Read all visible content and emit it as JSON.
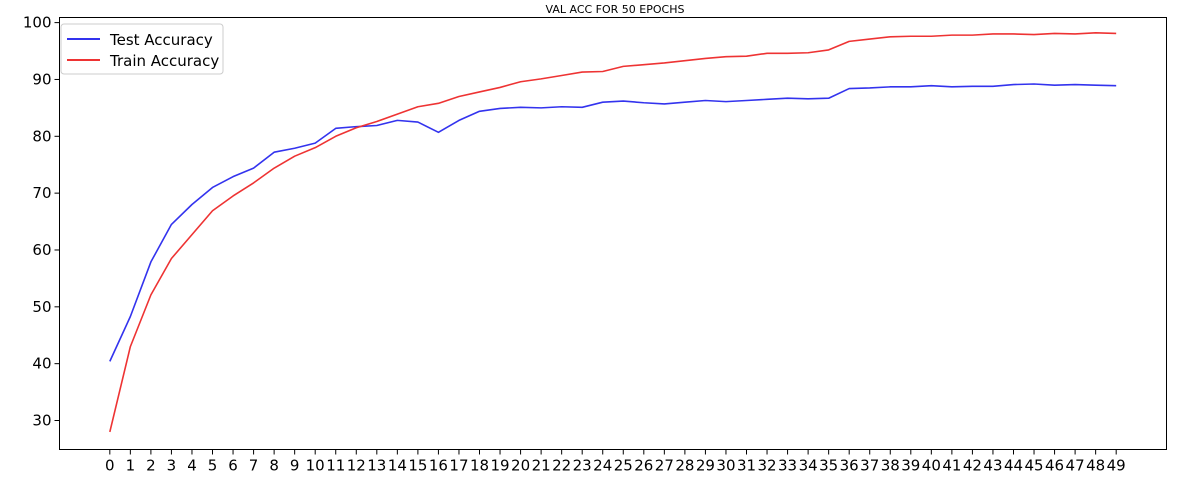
{
  "chart_data": {
    "type": "line",
    "title": "VAL ACC FOR 50 EPOCHS",
    "xlabel": "",
    "ylabel": "",
    "x": [
      0,
      1,
      2,
      3,
      4,
      5,
      6,
      7,
      8,
      9,
      10,
      11,
      12,
      13,
      14,
      15,
      16,
      17,
      18,
      19,
      20,
      21,
      22,
      23,
      24,
      25,
      26,
      27,
      28,
      29,
      30,
      31,
      32,
      33,
      34,
      35,
      36,
      37,
      38,
      39,
      40,
      41,
      42,
      43,
      44,
      45,
      46,
      47,
      48,
      49
    ],
    "xticks": [
      "0",
      "1",
      "2",
      "3",
      "4",
      "5",
      "6",
      "7",
      "8",
      "9",
      "10",
      "11",
      "12",
      "13",
      "14",
      "15",
      "16",
      "17",
      "18",
      "19",
      "20",
      "21",
      "22",
      "23",
      "24",
      "25",
      "26",
      "27",
      "28",
      "29",
      "30",
      "31",
      "32",
      "33",
      "34",
      "35",
      "36",
      "37",
      "38",
      "39",
      "40",
      "41",
      "42",
      "43",
      "44",
      "45",
      "46",
      "47",
      "48",
      "49"
    ],
    "yticks": [
      "30",
      "40",
      "50",
      "60",
      "70",
      "80",
      "90",
      "100"
    ],
    "ylim": [
      24.9,
      100.9
    ],
    "xlim": [
      -2.45,
      51.45
    ],
    "grid": false,
    "legend_position": "top-left",
    "series": [
      {
        "name": "Test Accuracy",
        "color": "#3333ee",
        "values": [
          40.4,
          48.3,
          57.9,
          64.5,
          68.0,
          71.0,
          72.9,
          74.4,
          77.2,
          77.9,
          78.8,
          81.4,
          81.7,
          81.9,
          82.8,
          82.5,
          80.7,
          82.8,
          84.4,
          84.9,
          85.1,
          85.0,
          85.2,
          85.1,
          86.0,
          86.2,
          85.9,
          85.7,
          86.0,
          86.3,
          86.1,
          86.3,
          86.5,
          86.7,
          86.6,
          86.7,
          88.4,
          88.5,
          88.7,
          88.7,
          88.9,
          88.7,
          88.8,
          88.8,
          89.1,
          89.2,
          89.0,
          89.1,
          89.0,
          88.9
        ]
      },
      {
        "name": "Train Accuracy",
        "color": "#ee3333",
        "values": [
          28.0,
          43.0,
          52.1,
          58.5,
          62.7,
          66.9,
          69.5,
          71.8,
          74.4,
          76.5,
          78.0,
          80.0,
          81.5,
          82.6,
          83.9,
          85.2,
          85.8,
          87.0,
          87.8,
          88.6,
          89.6,
          90.1,
          90.7,
          91.3,
          91.4,
          92.3,
          92.6,
          92.9,
          93.3,
          93.7,
          94.0,
          94.1,
          94.6,
          94.6,
          94.7,
          95.2,
          96.7,
          97.1,
          97.5,
          97.6,
          97.6,
          97.8,
          97.8,
          98.0,
          98.0,
          97.9,
          98.1,
          98.0,
          98.2,
          98.1
        ]
      }
    ]
  }
}
